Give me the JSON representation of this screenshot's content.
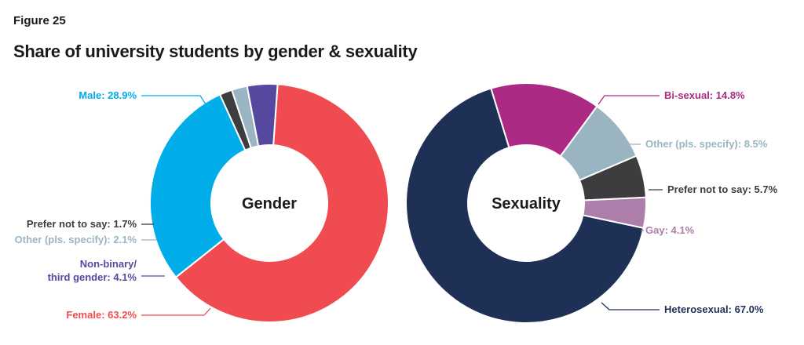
{
  "figure_label": "Figure 25",
  "title": "Share of university students by gender & sexuality",
  "chart_data": [
    {
      "type": "pie",
      "donut": true,
      "center_label": "Gender",
      "categories": [
        "Female",
        "Male",
        "Prefer not to say",
        "Other (pls. specify)",
        "Non-binary/ third gender"
      ],
      "values": [
        63.2,
        28.9,
        1.7,
        2.1,
        4.1
      ],
      "colors": [
        "#ef4b50",
        "#00ade9",
        "#3d3d3f",
        "#9ab5c1",
        "#54499e"
      ],
      "labels": [
        {
          "lines": [
            "Female: 63.2%"
          ]
        },
        {
          "lines": [
            "Male: 28.9%"
          ]
        },
        {
          "lines": [
            "Prefer not to say: 1.7%"
          ]
        },
        {
          "lines": [
            "Other (pls. specify): 2.1%"
          ]
        },
        {
          "lines": [
            "Non-binary/",
            "third gender: 4.1%"
          ]
        }
      ]
    },
    {
      "type": "pie",
      "donut": true,
      "center_label": "Sexuality",
      "categories": [
        "Bi-sexual",
        "Other (pls. specify)",
        "Prefer not to say",
        "Gay",
        "Heterosexual"
      ],
      "values": [
        14.8,
        8.5,
        5.7,
        4.1,
        67.0
      ],
      "colors": [
        "#ac2a84",
        "#9ab5c1",
        "#3d3d3f",
        "#ad7eaa",
        "#1f3057"
      ],
      "labels": [
        {
          "lines": [
            "Bi-sexual: 14.8%"
          ]
        },
        {
          "lines": [
            "Other (pls. specify): 8.5%"
          ]
        },
        {
          "lines": [
            "Prefer not to say: 5.7%"
          ]
        },
        {
          "lines": [
            "Gay: 4.1%"
          ]
        },
        {
          "lines": [
            "Heterosexual: 67.0%"
          ]
        }
      ]
    }
  ]
}
